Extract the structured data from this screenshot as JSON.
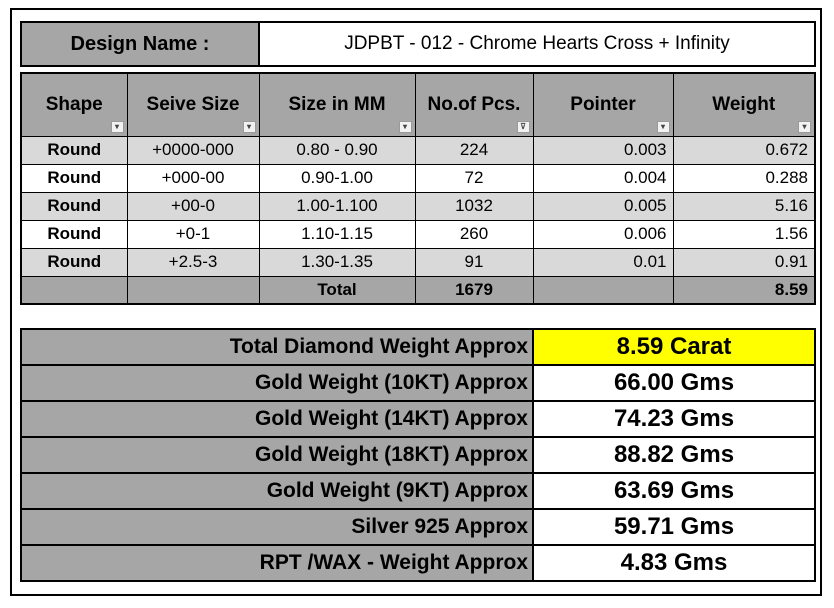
{
  "design": {
    "label": "Design Name :",
    "value": "JDPBT - 012 - Chrome Hearts Cross + Infinity"
  },
  "stones": {
    "headers": [
      "Shape",
      "Seive Size",
      "Size in MM",
      "No.of Pcs.",
      "Pointer",
      "Weight"
    ],
    "filter_icons": [
      "filter-dropdown",
      "filter-dropdown",
      "filter-dropdown",
      "filter-active",
      "filter-dropdown",
      "filter-dropdown"
    ],
    "rows": [
      [
        "Round",
        "+0000-000",
        "0.80 - 0.90",
        "224",
        "0.003",
        "0.672"
      ],
      [
        "Round",
        "+000-00",
        "0.90-1.00",
        "72",
        "0.004",
        "0.288"
      ],
      [
        "Round",
        "+00-0",
        "1.00-1.100",
        "1032",
        "0.005",
        "5.16"
      ],
      [
        "Round",
        "+0-1",
        "1.10-1.15",
        "260",
        "0.006",
        "1.56"
      ],
      [
        "Round",
        "+2.5-3",
        "1.30-1.35",
        "91",
        "0.01",
        "0.91"
      ]
    ],
    "total": {
      "label": "Total",
      "pcs": "1679",
      "weight": "8.59"
    }
  },
  "summary": [
    {
      "label": "Total Diamond Weight Approx",
      "value": "8.59 Carat",
      "highlight_color": "#ffff00"
    },
    {
      "label": "Gold Weight (10KT) Approx",
      "value": "66.00 Gms"
    },
    {
      "label": "Gold Weight (14KT) Approx",
      "value": "74.23 Gms"
    },
    {
      "label": "Gold Weight (18KT) Approx",
      "value": "88.82 Gms"
    },
    {
      "label": "Gold Weight (9KT) Approx",
      "value": "63.69 Gms"
    },
    {
      "label": "Silver 925 Approx",
      "value": "59.71 Gms"
    },
    {
      "label": "RPT /WAX - Weight Approx",
      "value": "4.83 Gms"
    }
  ],
  "colors": {
    "header_gray": "#a6a6a6",
    "band_gray": "#d9d9d9",
    "highlight": "#ffff00"
  }
}
